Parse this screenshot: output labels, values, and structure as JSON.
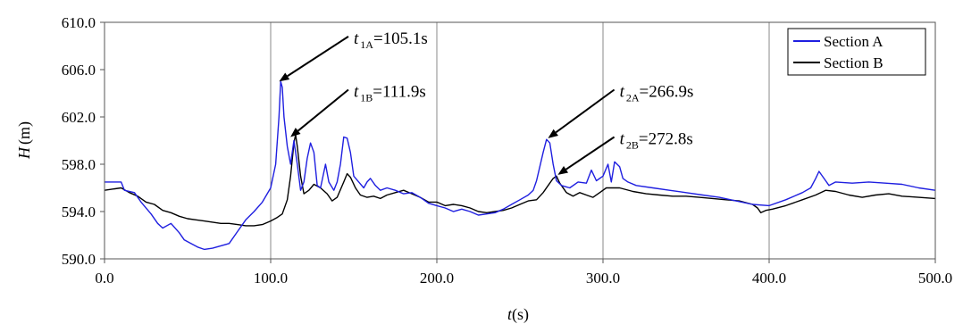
{
  "chart_data": {
    "type": "line",
    "xlabel": "t",
    "xlabel_unit": "(s)",
    "ylabel": "H",
    "ylabel_unit": "(m)",
    "xlim": [
      0,
      500
    ],
    "ylim": [
      590,
      610
    ],
    "xticks": [
      "0.0",
      "100.0",
      "200.0",
      "300.0",
      "400.0",
      "500.0"
    ],
    "yticks": [
      "590.0",
      "594.0",
      "598.0",
      "602.0",
      "606.0",
      "610.0"
    ],
    "grid": "vertical",
    "legend_position": "top-right",
    "series": [
      {
        "name": "Section A",
        "color": "#1f1fe0",
        "points": [
          [
            0,
            596.5
          ],
          [
            10,
            596.5
          ],
          [
            12,
            595.8
          ],
          [
            18,
            595.6
          ],
          [
            22,
            594.8
          ],
          [
            28,
            593.8
          ],
          [
            32,
            593.0
          ],
          [
            35,
            592.6
          ],
          [
            40,
            593.0
          ],
          [
            45,
            592.2
          ],
          [
            48,
            591.6
          ],
          [
            52,
            591.3
          ],
          [
            56,
            591.0
          ],
          [
            60,
            590.8
          ],
          [
            65,
            590.9
          ],
          [
            70,
            591.1
          ],
          [
            75,
            591.3
          ],
          [
            80,
            592.3
          ],
          [
            85,
            593.3
          ],
          [
            90,
            594.0
          ],
          [
            95,
            594.8
          ],
          [
            100,
            596.0
          ],
          [
            103,
            598.0
          ],
          [
            105,
            602.0
          ],
          [
            106,
            605.0
          ],
          [
            107,
            604.5
          ],
          [
            108,
            602.0
          ],
          [
            110,
            599.5
          ],
          [
            112,
            598.0
          ],
          [
            114,
            600.0
          ],
          [
            116,
            598.0
          ],
          [
            118,
            595.8
          ],
          [
            120,
            596.5
          ],
          [
            122,
            598.5
          ],
          [
            124,
            599.8
          ],
          [
            126,
            599.0
          ],
          [
            128,
            596.2
          ],
          [
            130,
            596.0
          ],
          [
            133,
            598.0
          ],
          [
            135,
            596.5
          ],
          [
            138,
            595.8
          ],
          [
            140,
            596.5
          ],
          [
            142,
            598.0
          ],
          [
            144,
            600.3
          ],
          [
            146,
            600.2
          ],
          [
            148,
            599.0
          ],
          [
            150,
            597.0
          ],
          [
            153,
            596.5
          ],
          [
            156,
            596.0
          ],
          [
            158,
            596.5
          ],
          [
            160,
            596.8
          ],
          [
            163,
            596.2
          ],
          [
            166,
            595.8
          ],
          [
            170,
            596.0
          ],
          [
            175,
            595.8
          ],
          [
            180,
            595.5
          ],
          [
            185,
            595.6
          ],
          [
            190,
            595.2
          ],
          [
            195,
            594.7
          ],
          [
            200,
            594.5
          ],
          [
            205,
            594.3
          ],
          [
            210,
            594.0
          ],
          [
            215,
            594.2
          ],
          [
            220,
            594.0
          ],
          [
            225,
            593.7
          ],
          [
            230,
            593.8
          ],
          [
            235,
            593.9
          ],
          [
            240,
            594.2
          ],
          [
            245,
            594.6
          ],
          [
            250,
            595.0
          ],
          [
            255,
            595.4
          ],
          [
            258,
            595.8
          ],
          [
            260,
            596.6
          ],
          [
            262,
            597.8
          ],
          [
            264,
            599.0
          ],
          [
            266,
            600.1
          ],
          [
            268,
            599.8
          ],
          [
            270,
            598.0
          ],
          [
            272,
            596.6
          ],
          [
            275,
            596.2
          ],
          [
            280,
            596.0
          ],
          [
            285,
            596.5
          ],
          [
            290,
            596.4
          ],
          [
            293,
            597.5
          ],
          [
            296,
            596.6
          ],
          [
            300,
            597.0
          ],
          [
            303,
            598.0
          ],
          [
            305,
            596.5
          ],
          [
            307,
            598.2
          ],
          [
            310,
            597.8
          ],
          [
            312,
            596.8
          ],
          [
            315,
            596.5
          ],
          [
            320,
            596.2
          ],
          [
            330,
            596.0
          ],
          [
            340,
            595.8
          ],
          [
            350,
            595.6
          ],
          [
            360,
            595.4
          ],
          [
            370,
            595.2
          ],
          [
            380,
            594.9
          ],
          [
            390,
            594.6
          ],
          [
            400,
            594.5
          ],
          [
            410,
            595.0
          ],
          [
            420,
            595.6
          ],
          [
            425,
            596.0
          ],
          [
            428,
            596.8
          ],
          [
            430,
            597.4
          ],
          [
            433,
            596.8
          ],
          [
            436,
            596.2
          ],
          [
            440,
            596.5
          ],
          [
            450,
            596.4
          ],
          [
            460,
            596.5
          ],
          [
            470,
            596.4
          ],
          [
            480,
            596.3
          ],
          [
            490,
            596.0
          ],
          [
            500,
            595.8
          ]
        ]
      },
      {
        "name": "Section B",
        "color": "#000000",
        "points": [
          [
            0,
            595.8
          ],
          [
            10,
            596.0
          ],
          [
            15,
            595.6
          ],
          [
            20,
            595.3
          ],
          [
            25,
            594.8
          ],
          [
            30,
            594.6
          ],
          [
            35,
            594.1
          ],
          [
            40,
            593.9
          ],
          [
            45,
            593.6
          ],
          [
            50,
            593.4
          ],
          [
            55,
            593.3
          ],
          [
            60,
            593.2
          ],
          [
            65,
            593.1
          ],
          [
            70,
            593.0
          ],
          [
            75,
            593.0
          ],
          [
            80,
            592.9
          ],
          [
            85,
            592.8
          ],
          [
            90,
            592.8
          ],
          [
            95,
            592.9
          ],
          [
            100,
            593.2
          ],
          [
            104,
            593.5
          ],
          [
            107,
            593.8
          ],
          [
            110,
            595.0
          ],
          [
            112,
            597.0
          ],
          [
            114,
            599.8
          ],
          [
            115,
            600.5
          ],
          [
            116,
            599.5
          ],
          [
            118,
            597.0
          ],
          [
            120,
            595.5
          ],
          [
            123,
            595.8
          ],
          [
            126,
            596.3
          ],
          [
            130,
            596.0
          ],
          [
            134,
            595.5
          ],
          [
            137,
            594.9
          ],
          [
            140,
            595.2
          ],
          [
            144,
            596.5
          ],
          [
            146,
            597.2
          ],
          [
            148,
            596.9
          ],
          [
            151,
            596.0
          ],
          [
            154,
            595.4
          ],
          [
            158,
            595.2
          ],
          [
            162,
            595.3
          ],
          [
            166,
            595.1
          ],
          [
            170,
            595.4
          ],
          [
            175,
            595.6
          ],
          [
            180,
            595.8
          ],
          [
            185,
            595.5
          ],
          [
            190,
            595.2
          ],
          [
            195,
            594.8
          ],
          [
            200,
            594.8
          ],
          [
            205,
            594.5
          ],
          [
            210,
            594.6
          ],
          [
            215,
            594.5
          ],
          [
            220,
            594.3
          ],
          [
            225,
            594.0
          ],
          [
            230,
            593.9
          ],
          [
            235,
            594.0
          ],
          [
            240,
            594.1
          ],
          [
            245,
            594.3
          ],
          [
            250,
            594.6
          ],
          [
            255,
            594.9
          ],
          [
            260,
            595.0
          ],
          [
            264,
            595.6
          ],
          [
            267,
            596.2
          ],
          [
            270,
            596.8
          ],
          [
            272,
            597.0
          ],
          [
            274,
            596.4
          ],
          [
            278,
            595.6
          ],
          [
            282,
            595.3
          ],
          [
            286,
            595.6
          ],
          [
            290,
            595.4
          ],
          [
            294,
            595.2
          ],
          [
            298,
            595.6
          ],
          [
            302,
            596.0
          ],
          [
            310,
            596.0
          ],
          [
            318,
            595.7
          ],
          [
            326,
            595.5
          ],
          [
            334,
            595.4
          ],
          [
            342,
            595.3
          ],
          [
            350,
            595.3
          ],
          [
            358,
            595.2
          ],
          [
            366,
            595.1
          ],
          [
            374,
            595.0
          ],
          [
            382,
            594.9
          ],
          [
            390,
            594.6
          ],
          [
            393,
            594.3
          ],
          [
            395,
            593.9
          ],
          [
            398,
            594.1
          ],
          [
            402,
            594.2
          ],
          [
            410,
            594.5
          ],
          [
            420,
            595.0
          ],
          [
            428,
            595.4
          ],
          [
            434,
            595.8
          ],
          [
            440,
            595.7
          ],
          [
            448,
            595.4
          ],
          [
            456,
            595.2
          ],
          [
            464,
            595.4
          ],
          [
            472,
            595.5
          ],
          [
            480,
            595.3
          ],
          [
            490,
            595.2
          ],
          [
            500,
            595.1
          ]
        ]
      }
    ],
    "annotations": [
      {
        "label_main": "t",
        "label_sub": "1A",
        "label_value": "=105.1s",
        "x": 105.1,
        "y": 605.0,
        "text_x": 150,
        "text_y": 608.5
      },
      {
        "label_main": "t",
        "label_sub": "1B",
        "label_value": "=111.9s",
        "x": 111.9,
        "y": 600.3,
        "text_x": 150,
        "text_y": 604.0
      },
      {
        "label_main": "t",
        "label_sub": "2A",
        "label_value": "=266.9s",
        "x": 266.9,
        "y": 600.2,
        "text_x": 310,
        "text_y": 604.0
      },
      {
        "label_main": "t",
        "label_sub": "2B",
        "label_value": "=272.8s",
        "x": 272.8,
        "y": 597.1,
        "text_x": 310,
        "text_y": 600.0
      }
    ]
  }
}
